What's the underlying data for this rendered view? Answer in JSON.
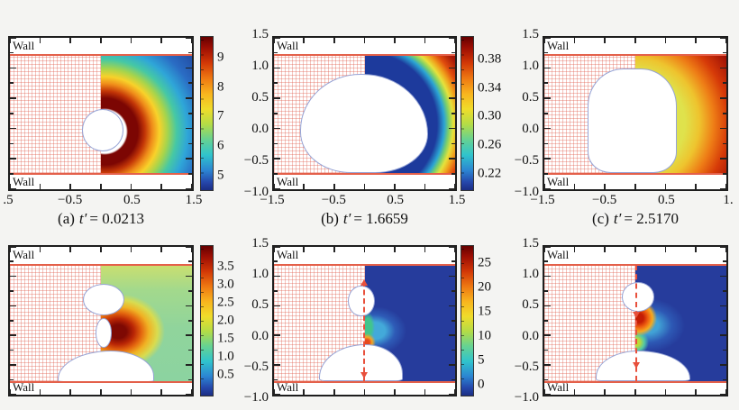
{
  "figure": {
    "background": "#f4f4f2",
    "rows": 2,
    "cols": 3,
    "description": "Six CFD contour panels of bubble dynamics in a wall-bounded channel; left half of each panel shows red velocity vectors, right half a rainbow (jet) contour field; white regions are the bubble interface"
  },
  "colors": {
    "wall_line": "#e4604a",
    "bubble_outline": "#96a4d6",
    "vector_field_red": "#dd5240",
    "far_field_blue": "#263c9c",
    "colormap": "jet"
  },
  "chart_data": [
    {
      "id": "a",
      "type": "heatmap",
      "caption": {
        "prefix": "(a)",
        "var": "t′",
        "eq": "= 0.0213"
      },
      "wall_top": "Wall",
      "wall_bottom": "Wall",
      "xlim": [
        -1.5,
        1.5
      ],
      "ylim": [
        -1.0,
        1.5
      ],
      "x_tick_labels": [
        ".5",
        "−0.5",
        "0.5",
        "1.5"
      ],
      "y_tick_labels": [],
      "colorbar_tick_labels": [
        "9",
        "8",
        "7",
        "6",
        "5"
      ],
      "colorbar_range_est": [
        4.5,
        9.7
      ],
      "content": "small spherical bubble at channel centre, concentric red-to-blue radial contour on right half"
    },
    {
      "id": "b",
      "type": "heatmap",
      "caption": {
        "prefix": "(b)",
        "var": "t′",
        "eq": "= 1.6659"
      },
      "wall_top": "Wall",
      "wall_bottom": "Wall",
      "xlim": [
        -1.5,
        1.5
      ],
      "ylim": [
        -1.0,
        1.5
      ],
      "x_tick_labels": [
        "−1.5",
        "−0.5",
        "0.5",
        "1.5"
      ],
      "y_tick_labels": [
        "1.5",
        "1.0",
        "0.5",
        "0.0",
        "−0.5",
        "−1.0"
      ],
      "colorbar_tick_labels": [
        "0.38",
        "0.34",
        "0.30",
        "0.26",
        "0.22"
      ],
      "colorbar_range_est": [
        0.2,
        0.4
      ],
      "content": "bubble near maximum volume, dark-blue band around interface grading to dark red at right boundary"
    },
    {
      "id": "c",
      "type": "heatmap",
      "caption": {
        "prefix": "(c)",
        "var": "t′",
        "eq": "= 2.5170"
      },
      "wall_top": "Wall",
      "wall_bottom": "Wall",
      "xlim": [
        -1.5,
        1.5
      ],
      "ylim": [
        -1.0,
        1.5
      ],
      "x_tick_labels": [
        "−1.5",
        "−0.5",
        "0.5",
        "1."
      ],
      "y_tick_labels": [
        "1.5",
        "1.0",
        "0.5",
        "0.0",
        "−0.5",
        "−1.0"
      ],
      "colorbar_tick_labels": [],
      "content": "flattened loaf-shaped bubble, yellow near interface grading to dark red at right boundary, no colorbar visible"
    },
    {
      "id": "d",
      "type": "heatmap",
      "caption": null,
      "wall_top": "Wall",
      "wall_bottom": "Wall",
      "xlim": [
        -1.5,
        1.5
      ],
      "ylim": [
        -1.0,
        1.5
      ],
      "x_tick_labels": [],
      "y_tick_labels": [],
      "colorbar_tick_labels": [
        "3.5",
        "3.0",
        "2.5",
        "2.0",
        "1.5",
        "1.0",
        "0.5"
      ],
      "colorbar_range_est": [
        0.25,
        3.75
      ],
      "content": "hour-glass (necking) bubble, dark-red/orange hotspot at the neck on a green field"
    },
    {
      "id": "e",
      "type": "heatmap",
      "caption": null,
      "wall_top": "Wall",
      "wall_bottom": "Wall",
      "xlim": [
        -1.5,
        1.5
      ],
      "ylim": [
        -1.0,
        1.5
      ],
      "x_tick_labels": [],
      "y_tick_labels": [
        "1.5",
        "1.0",
        "0.5",
        "0.0",
        "−0.5",
        "−1.0"
      ],
      "colorbar_tick_labels": [
        "25",
        "20",
        "15",
        "10",
        "5",
        "0"
      ],
      "colorbar_range_est": [
        0,
        27
      ],
      "content": "detached upper bubble and lower pool on dark-blue field, cyan-green hotspot between them, red dashed jet arrows along axis"
    },
    {
      "id": "f",
      "type": "heatmap",
      "caption": null,
      "wall_top": "Wall",
      "wall_bottom": "Wall",
      "xlim": [
        -1.5,
        1.5
      ],
      "ylim": [
        -1.0,
        1.5
      ],
      "x_tick_labels": [],
      "y_tick_labels": [
        "1.5",
        "1.0",
        "0.5",
        "0.0",
        "−0.5",
        "−1.0"
      ],
      "colorbar_tick_labels": [],
      "content": "upper bubble and lower pool pierced by full-height red dashed jet line, red-orange hotspot below upper bubble, no colorbar visible"
    }
  ]
}
